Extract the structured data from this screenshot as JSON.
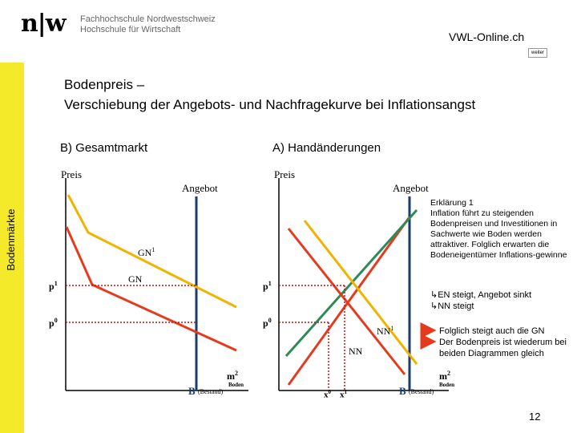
{
  "header": {
    "logo": "n|w",
    "institution_line1": "Fachhochschule Nordwestschweiz",
    "institution_line2": "Hochschule für Wirtschaft",
    "site_name": "VWL-Online.ch",
    "next_button": "weiter"
  },
  "sidebar": {
    "label": "Bodenmärkte"
  },
  "title": {
    "line1": "Bodenpreis –",
    "line2": "Verschiebung der Angebots- und Nachfragekurve bei Inflationsangst"
  },
  "chart_left": {
    "heading": "B) Gesamtmarkt",
    "ylabel": "Preis",
    "supply_label": "Angebot",
    "demand_new_label": "GN",
    "demand_new_sup": "1",
    "demand_old_label": "GN",
    "p1_label": "p",
    "p1_sup": "1",
    "p0_label": "p",
    "p0_sup": "0",
    "stock_label": "B",
    "stock_note": "(Bestand)",
    "xlabel": "m",
    "xlabel_sup": "2",
    "xlabel_note": "Boden"
  },
  "chart_right": {
    "heading": "A) Handänderungen",
    "ylabel": "Preis",
    "supply_label": "Angebot",
    "p1_label": "p",
    "p1_sup": "1",
    "p0_label": "p",
    "p0_sup": "0",
    "demand_new_label": "NN",
    "demand_new_sup": "1",
    "demand_old_label": "NN",
    "x0_label": "x",
    "x0_sup": "0",
    "x1_label": "x",
    "x1_sup": "1",
    "stock_label": "B",
    "stock_note": "(Bestand)",
    "xlabel": "m",
    "xlabel_sup": "2",
    "xlabel_note": "Boden"
  },
  "explanation": {
    "title": "Erklärung 1",
    "text": "Inflation führt zu steigenden Bodenpreisen und Investitionen in Sachwerte wie Boden werden attraktiver. Folglich erwarten die Bodeneigentümer Inflations-gewinne",
    "bullets1": [
      "EN steigt, Angebot sinkt",
      "NN steigt"
    ],
    "bullets2": [
      "Folglich steigt auch die GN",
      "Der Bodenpreis ist wiederum bei beiden Diagrammen gleich"
    ]
  },
  "colors": {
    "sidebar": "#f5ea2a",
    "old_curve": "#e63a1e",
    "new_curve": "#f0b400",
    "stock": "#1a3c6e",
    "supply_right": "#2e8b57",
    "dotted": "#cc1111",
    "arrow": "#e63a1e"
  },
  "page_number": "12"
}
